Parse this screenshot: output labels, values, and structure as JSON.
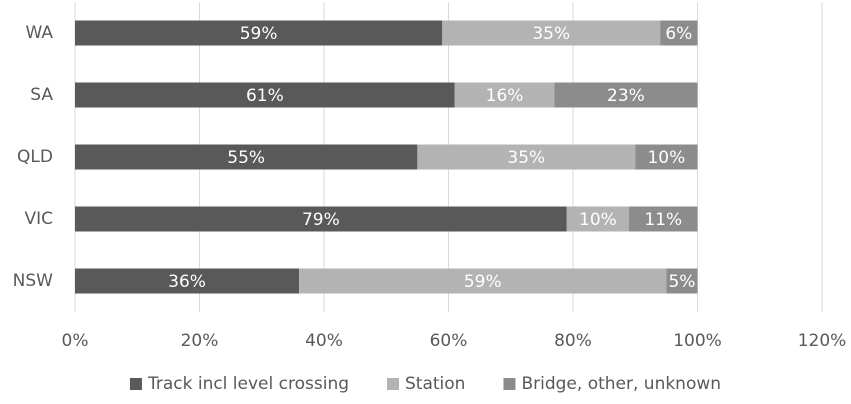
{
  "chart_data": {
    "type": "stacked-bar-horizontal",
    "categories": [
      "WA",
      "SA",
      "QLD",
      "VIC",
      "NSW"
    ],
    "series": [
      {
        "name": "Track incl level crossing",
        "color": "#595959",
        "values": [
          59,
          61,
          55,
          79,
          36
        ],
        "value_labels": [
          "59%",
          "61%",
          "55%",
          "79%",
          "36%"
        ]
      },
      {
        "name": "Station",
        "color": "#b3b3b3",
        "values": [
          35,
          16,
          35,
          10,
          59
        ],
        "value_labels": [
          "35%",
          "16%",
          "35%",
          "10%",
          "59%"
        ]
      },
      {
        "name": "Bridge, other, unknown",
        "color": "#8c8c8c",
        "values": [
          6,
          23,
          10,
          11,
          5
        ],
        "value_labels": [
          "6%",
          "23%",
          "10%",
          "11%",
          "5%"
        ]
      }
    ],
    "xlim": [
      0,
      120
    ],
    "xticks": [
      {
        "value": 0,
        "label": "0%"
      },
      {
        "value": 20,
        "label": "20%"
      },
      {
        "value": 40,
        "label": "40%"
      },
      {
        "value": 60,
        "label": "60%"
      },
      {
        "value": 80,
        "label": "80%"
      },
      {
        "value": 100,
        "label": "100%"
      },
      {
        "value": 120,
        "label": "120%"
      }
    ],
    "grid": true,
    "legend": "bottom"
  }
}
